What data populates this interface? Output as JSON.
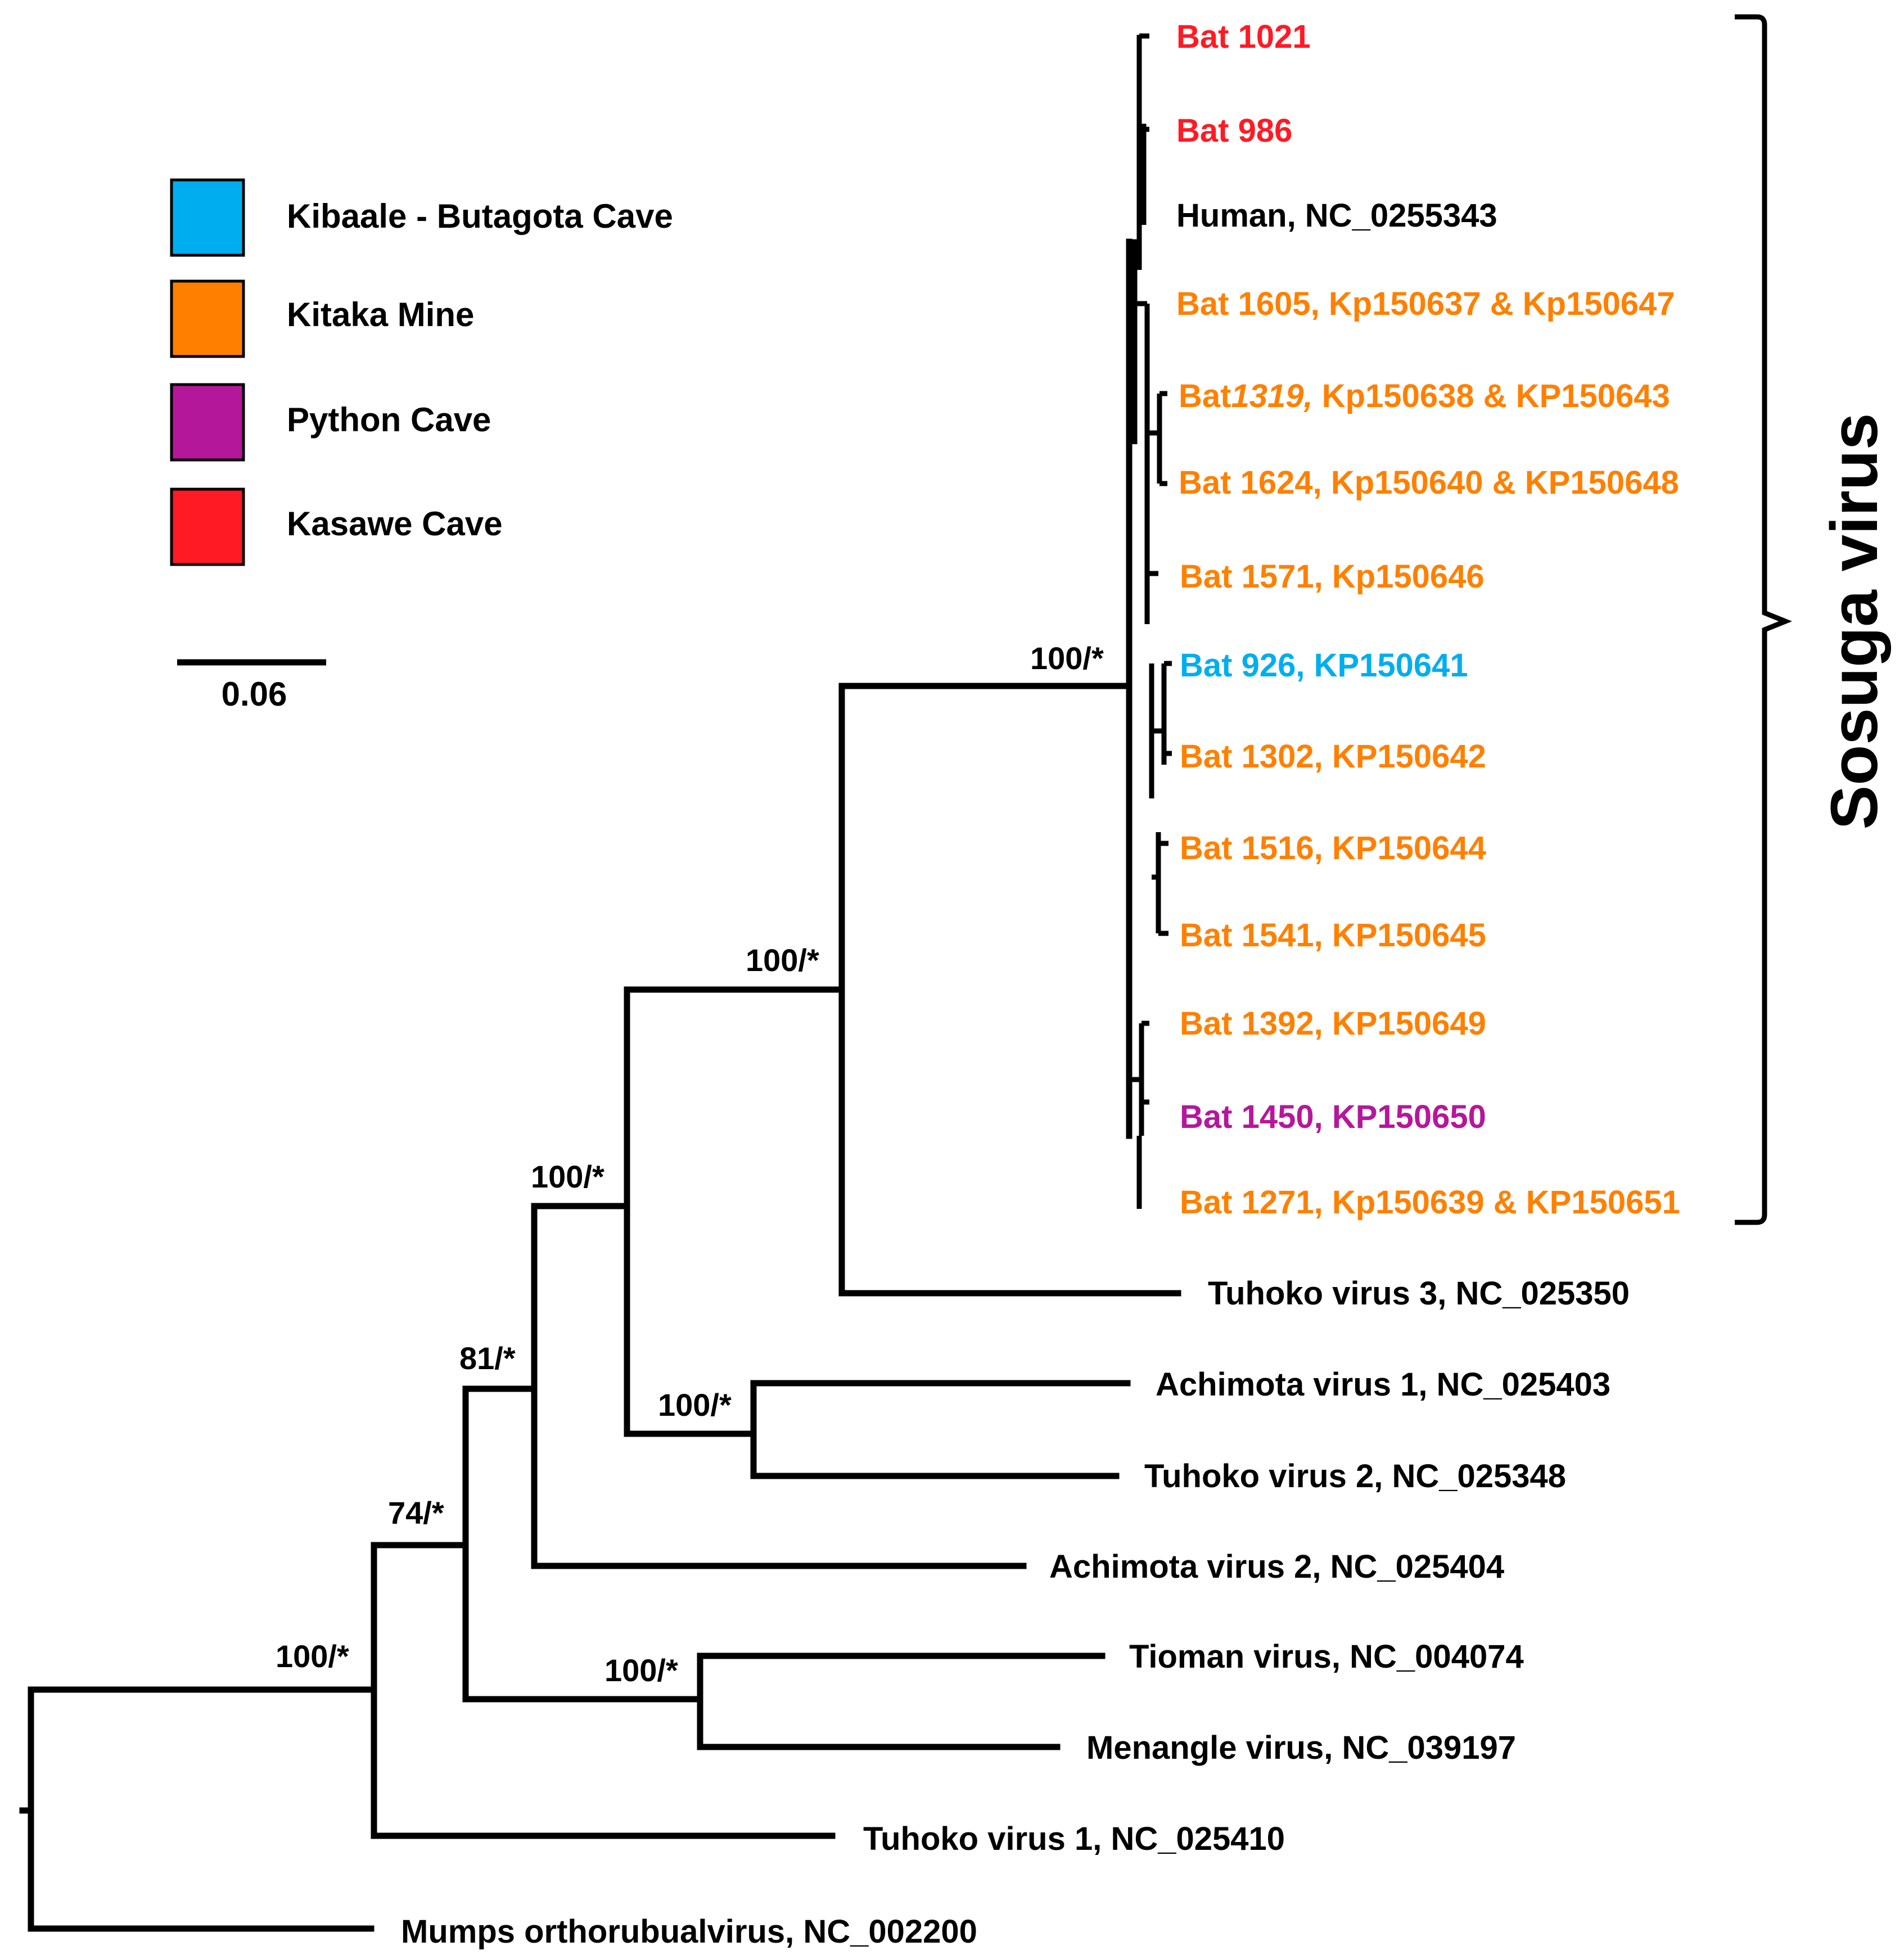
{
  "legend": {
    "items": [
      {
        "label": "Kibaale - Butagota Cave",
        "color": "#00aeef"
      },
      {
        "label": "Kitaka Mine",
        "color": "#ff8000"
      },
      {
        "label": "Python Cave",
        "color": "#b5179b"
      },
      {
        "label": "Kasawe Cave",
        "color": "#ff1a24"
      }
    ]
  },
  "scale_bar": {
    "label": "0.06"
  },
  "clade": {
    "label": "Sosuga virus"
  },
  "colors": {
    "kibaale": "#00aeef",
    "kitaka": "#ff8000",
    "python": "#b5179b",
    "kasawe": "#ff1a24",
    "black": "#000000"
  },
  "taxa": [
    {
      "label": "Bat 1021",
      "site": "kasawe"
    },
    {
      "label": "Bat 986",
      "site": "kasawe"
    },
    {
      "label": "Human, NC_0255343",
      "site": "black"
    },
    {
      "label": "Bat 1605, Kp150637 & Kp150647",
      "site": "kitaka"
    },
    {
      "label_pre": "Bat",
      "label_em": "1319,",
      "label_post": " Kp150638 & KP150643",
      "site": "kitaka"
    },
    {
      "label": "Bat 1624, Kp150640 & KP150648",
      "site": "kitaka"
    },
    {
      "label": "Bat 1571, Kp150646",
      "site": "kitaka"
    },
    {
      "label": "Bat 926, KP150641",
      "site": "kibaale"
    },
    {
      "label": "Bat 1302, KP150642",
      "site": "kitaka"
    },
    {
      "label": "Bat 1516, KP150644",
      "site": "kitaka"
    },
    {
      "label": "Bat 1541, KP150645",
      "site": "kitaka"
    },
    {
      "label": "Bat 1392, KP150649",
      "site": "kitaka"
    },
    {
      "label": "Bat 1450, KP150650",
      "site": "python"
    },
    {
      "label": "Bat 1271, Kp150639 & KP150651",
      "site": "kitaka"
    },
    {
      "label": "Tuhoko virus 3, NC_025350",
      "site": "black"
    },
    {
      "label": "Achimota virus 1, NC_025403",
      "site": "black"
    },
    {
      "label": "Tuhoko virus 2, NC_025348",
      "site": "black"
    },
    {
      "label": "Achimota virus 2, NC_025404",
      "site": "black"
    },
    {
      "label": "Tioman virus, NC_004074",
      "site": "black"
    },
    {
      "label": "Menangle virus, NC_039197",
      "site": "black"
    },
    {
      "label": "Tuhoko virus 1, NC_025410",
      "site": "black"
    },
    {
      "label": "Mumps orthorubualvirus, NC_002200",
      "site": "black"
    }
  ],
  "support": [
    {
      "label": "100/*",
      "node": "sosuga"
    },
    {
      "label": "100/*",
      "node": "tuhoko3_group"
    },
    {
      "label": "100/*",
      "node": "achimota1_group"
    },
    {
      "label": "100/*",
      "node": "achimota2_group"
    },
    {
      "label": "81/*",
      "node": "tioman_split"
    },
    {
      "label": "74/*",
      "node": "tuhoko1_split"
    },
    {
      "label": "100/*",
      "node": "tioman_menangle"
    },
    {
      "label": "100/*",
      "node": "ingroup"
    }
  ]
}
